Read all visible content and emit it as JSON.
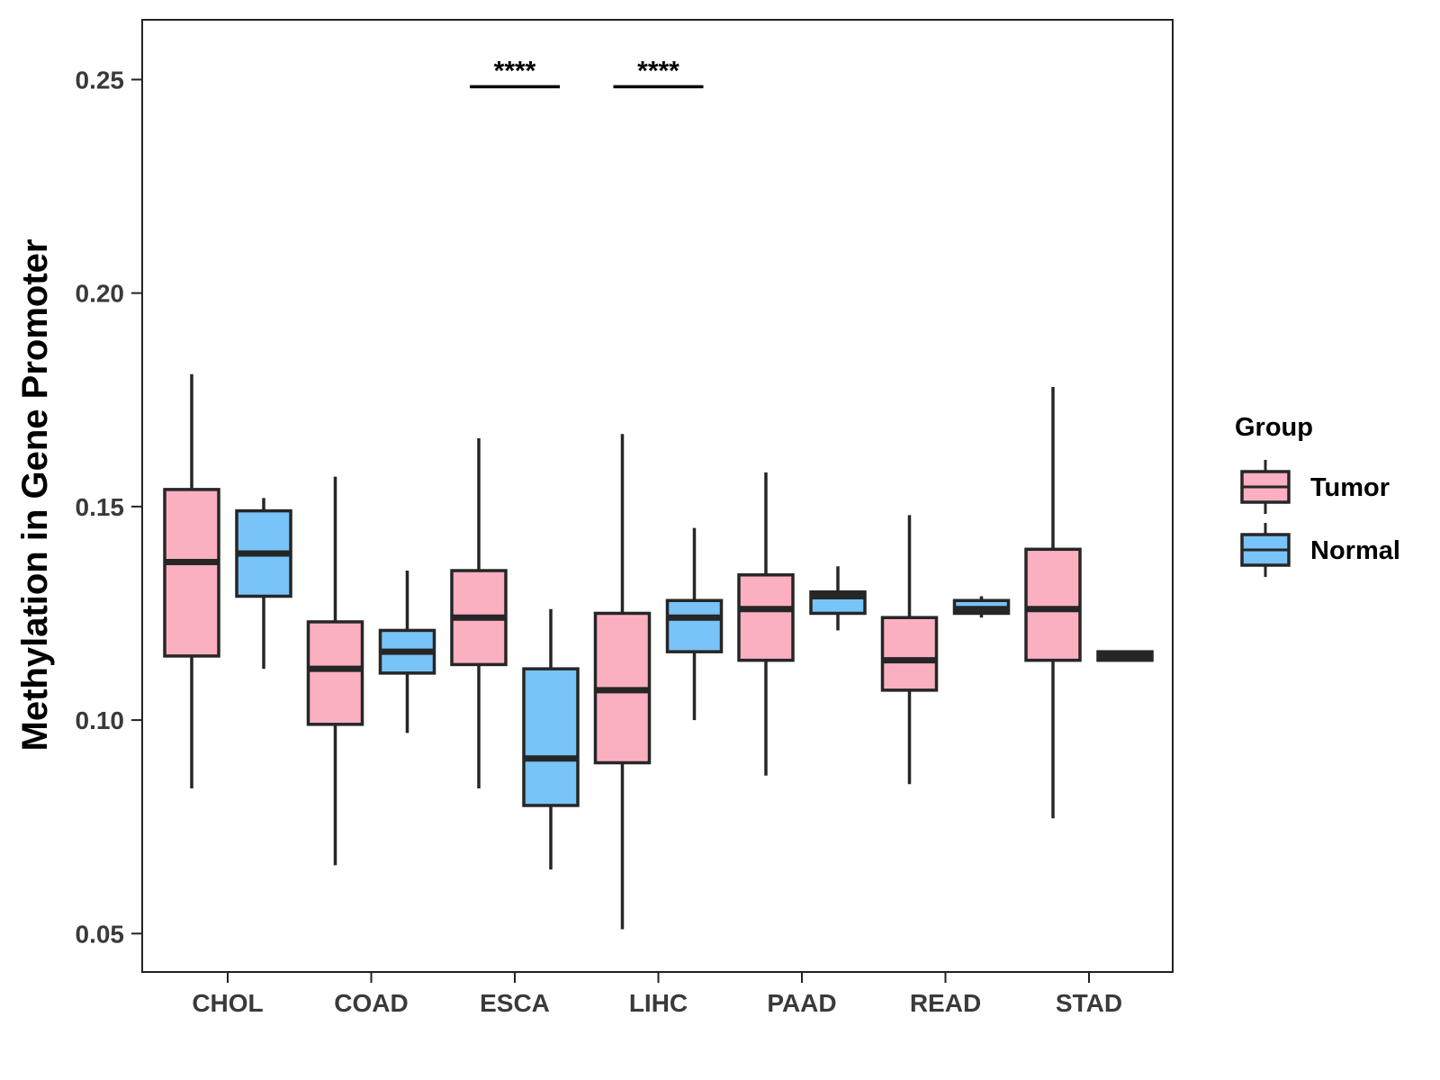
{
  "chart_data": {
    "type": "boxplot",
    "ylabel": "Methylation in Gene Promoter",
    "xlabel": "",
    "ylim": [
      0.041,
      0.264
    ],
    "yticks": [
      0.05,
      0.1,
      0.15,
      0.2,
      0.25
    ],
    "ytick_labels": [
      "0.05",
      "0.10",
      "0.15",
      "0.20",
      "0.25"
    ],
    "categories": [
      "CHOL",
      "COAD",
      "ESCA",
      "LIHC",
      "PAAD",
      "READ",
      "STAD"
    ],
    "legend": {
      "title": "Group",
      "position": "right",
      "entries": [
        "Tumor",
        "Normal"
      ]
    },
    "colors": {
      "Tumor": "#fbb0c2",
      "Normal": "#78c3f7",
      "outline": "#262626"
    },
    "series": [
      {
        "name": "Tumor",
        "boxes": [
          {
            "category": "CHOL",
            "min": 0.084,
            "q1": 0.115,
            "median": 0.137,
            "q3": 0.154,
            "max": 0.181
          },
          {
            "category": "COAD",
            "min": 0.066,
            "q1": 0.099,
            "median": 0.112,
            "q3": 0.123,
            "max": 0.157
          },
          {
            "category": "ESCA",
            "min": 0.084,
            "q1": 0.113,
            "median": 0.124,
            "q3": 0.135,
            "max": 0.166
          },
          {
            "category": "LIHC",
            "min": 0.051,
            "q1": 0.09,
            "median": 0.107,
            "q3": 0.125,
            "max": 0.167
          },
          {
            "category": "PAAD",
            "min": 0.087,
            "q1": 0.114,
            "median": 0.126,
            "q3": 0.134,
            "max": 0.158
          },
          {
            "category": "READ",
            "min": 0.085,
            "q1": 0.107,
            "median": 0.114,
            "q3": 0.124,
            "max": 0.148
          },
          {
            "category": "STAD",
            "min": 0.077,
            "q1": 0.114,
            "median": 0.126,
            "q3": 0.14,
            "max": 0.178
          }
        ]
      },
      {
        "name": "Normal",
        "boxes": [
          {
            "category": "CHOL",
            "min": 0.112,
            "q1": 0.129,
            "median": 0.139,
            "q3": 0.149,
            "max": 0.152
          },
          {
            "category": "COAD",
            "min": 0.097,
            "q1": 0.111,
            "median": 0.116,
            "q3": 0.121,
            "max": 0.135
          },
          {
            "category": "ESCA",
            "min": 0.065,
            "q1": 0.08,
            "median": 0.091,
            "q3": 0.112,
            "max": 0.126
          },
          {
            "category": "LIHC",
            "min": 0.1,
            "q1": 0.116,
            "median": 0.124,
            "q3": 0.128,
            "max": 0.145
          },
          {
            "category": "PAAD",
            "min": 0.121,
            "q1": 0.125,
            "median": 0.129,
            "q3": 0.13,
            "max": 0.136
          },
          {
            "category": "READ",
            "min": 0.124,
            "q1": 0.125,
            "median": 0.126,
            "q3": 0.128,
            "max": 0.129
          },
          {
            "category": "STAD",
            "min": 0.114,
            "q1": 0.114,
            "median": 0.115,
            "q3": 0.116,
            "max": 0.116
          }
        ]
      }
    ],
    "annotations": [
      {
        "category": "ESCA",
        "label": "****",
        "y": 0.25
      },
      {
        "category": "LIHC",
        "label": "****",
        "y": 0.25
      }
    ]
  }
}
